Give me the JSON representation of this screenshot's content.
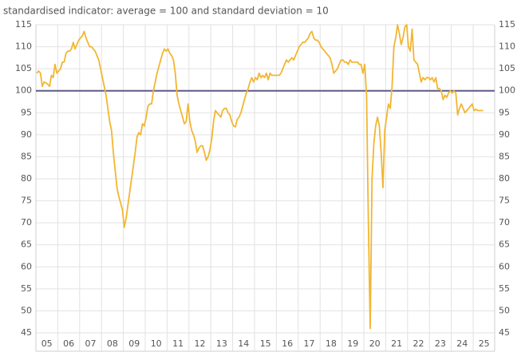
{
  "chart_data": {
    "type": "line",
    "subtitle": "standardised indicator: average = 100 and standard deviation = 10",
    "categories": [
      null,
      null,
      null,
      null,
      null,
      "05",
      null,
      null,
      null,
      null,
      null,
      null,
      null,
      null,
      null,
      null,
      null,
      "06",
      null,
      null,
      null,
      null,
      null,
      null,
      null,
      null,
      null,
      null,
      null,
      "07",
      null,
      null,
      null,
      null,
      null,
      null,
      null,
      null,
      null,
      null,
      null,
      "08",
      null,
      null,
      null,
      null,
      null,
      null,
      null,
      null,
      null,
      null,
      null,
      "09",
      null,
      null,
      null,
      null,
      null,
      null,
      null,
      null,
      null,
      null,
      null,
      "10",
      null,
      null,
      null,
      null,
      null,
      null,
      null,
      null,
      null,
      null,
      null,
      "11",
      null,
      null,
      null,
      null,
      null,
      null,
      null,
      null,
      null,
      null,
      null,
      "12",
      null,
      null,
      null,
      null,
      null,
      null,
      null,
      null,
      null,
      null,
      null,
      "13",
      null,
      null,
      null,
      null,
      null,
      null,
      null,
      null,
      null,
      null,
      null,
      "14",
      null,
      null,
      null,
      null,
      null,
      null,
      null,
      null,
      null,
      null,
      null,
      "15",
      null,
      null,
      null,
      null,
      null,
      null,
      null,
      null,
      null,
      null,
      null,
      "16",
      null,
      null,
      null,
      null,
      null,
      null,
      null,
      null,
      null,
      null,
      null,
      "17",
      null,
      null,
      null,
      null,
      null,
      null,
      null,
      null,
      null,
      null,
      null,
      "18",
      null,
      null,
      null,
      null,
      null,
      null,
      null,
      null,
      null,
      null,
      null,
      "19",
      null,
      null,
      null,
      null,
      null,
      null,
      null,
      null,
      null,
      null,
      null,
      "20",
      null,
      null,
      null,
      null,
      null,
      null,
      null,
      null,
      null,
      null,
      null,
      "21",
      null,
      null,
      null,
      null,
      null,
      null,
      null,
      null,
      null,
      null,
      null,
      "22",
      null,
      null,
      null,
      null,
      null,
      null,
      null,
      null,
      null,
      null,
      null,
      "23",
      null,
      null,
      null,
      null,
      null,
      null,
      null,
      null,
      null,
      null,
      null,
      "24",
      null,
      null,
      null,
      null,
      null,
      null,
      null,
      null,
      null,
      null,
      null,
      "25"
    ],
    "series": [
      {
        "color": "#f2b632",
        "values": [
          104,
          104.5,
          104,
          101,
          102,
          101.8,
          101.5,
          101,
          103.5,
          103,
          106,
          104,
          104.5,
          105,
          106.5,
          106.5,
          108.5,
          109,
          109,
          109.5,
          111,
          109.5,
          110.5,
          111.5,
          112,
          112.5,
          113.5,
          112,
          111,
          110,
          110,
          109.5,
          109,
          108,
          107,
          105,
          103,
          101,
          99,
          96,
          93,
          91,
          86,
          82,
          78,
          76,
          74.5,
          73,
          69,
          71,
          74,
          77,
          80,
          83,
          86,
          89.5,
          90.5,
          90,
          92.5,
          92,
          94,
          96.5,
          97,
          97,
          100,
          102,
          104,
          105.5,
          107,
          108.5,
          109.5,
          109,
          109.5,
          108.5,
          108,
          107,
          104,
          99,
          97,
          95.5,
          94,
          92.5,
          93,
          97,
          93,
          91,
          90,
          88.5,
          86,
          87,
          87.5,
          87.5,
          86,
          84.2,
          85,
          86.5,
          89,
          93,
          95.5,
          95,
          94.5,
          94,
          95.5,
          96,
          96,
          95,
          94.5,
          93,
          92,
          91.8,
          93.5,
          94,
          95,
          96.5,
          98,
          99.5,
          100.5,
          102,
          103,
          102,
          103,
          102.5,
          104,
          103,
          103.5,
          103,
          104,
          102.5,
          104,
          103.5,
          103.5,
          103.5,
          103.5,
          103.5,
          104,
          105,
          106,
          107,
          106.5,
          107,
          107.5,
          107,
          108,
          109,
          110,
          110.5,
          111,
          111,
          111.5,
          112,
          113,
          113.5,
          112,
          111.5,
          111.5,
          111,
          110,
          109.5,
          109,
          108.5,
          108,
          107.5,
          106,
          104,
          104.5,
          105,
          106,
          107,
          107,
          106.5,
          106.5,
          106,
          107,
          106.5,
          106.5,
          106.5,
          106.5,
          106,
          106,
          104,
          106,
          99,
          70,
          46,
          80,
          88,
          92,
          94,
          92,
          86,
          78,
          91,
          94,
          97,
          96,
          101,
          110,
          112,
          115,
          113,
          110.5,
          112,
          114.5,
          115,
          110,
          109,
          114,
          107,
          106.5,
          106,
          104,
          102,
          103,
          102.5,
          103,
          103,
          102.5,
          103,
          102,
          103,
          100.5,
          100.5,
          100,
          98,
          99,
          98.5,
          99.5,
          100,
          99.5,
          100,
          99.5,
          94.5,
          96,
          97,
          96,
          95,
          95.5,
          96,
          96.5,
          97,
          95.5,
          95.8,
          95.5,
          95.5,
          95.5,
          95.5
        ]
      }
    ],
    "reference_line": {
      "value": 100,
      "color": "#5e5a85"
    },
    "ylim": [
      45,
      115
    ],
    "yticks": [
      45,
      50,
      55,
      60,
      65,
      70,
      75,
      80,
      85,
      90,
      95,
      100,
      105,
      110,
      115
    ],
    "grid": true
  }
}
